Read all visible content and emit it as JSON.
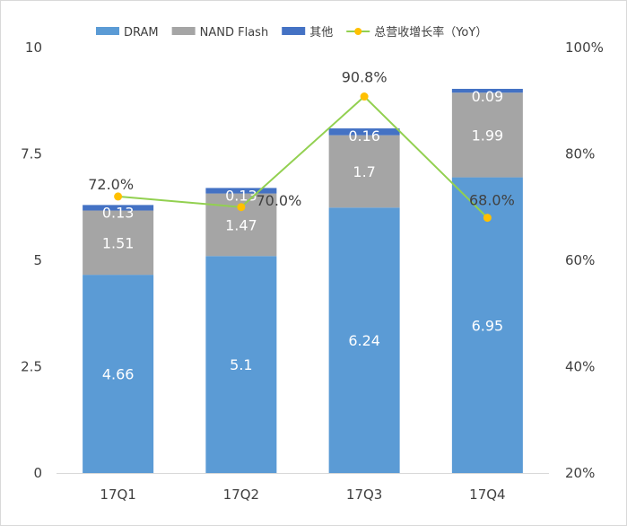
{
  "chart_data": {
    "type": "bar",
    "stacked": true,
    "categories": [
      "17Q1",
      "17Q2",
      "17Q3",
      "17Q4"
    ],
    "series": [
      {
        "name": "DRAM",
        "values": [
          4.66,
          5.1,
          6.24,
          6.95
        ],
        "color": "#5b9bd5"
      },
      {
        "name": "NAND Flash",
        "values": [
          1.51,
          1.47,
          1.7,
          1.99
        ],
        "color": "#a5a5a5"
      },
      {
        "name": "其他",
        "values": [
          0.13,
          0.13,
          0.16,
          0.09
        ],
        "color": "#4472c4"
      }
    ],
    "line_series": {
      "name": "总营收增长率（YoY）",
      "values": [
        72.0,
        70.0,
        90.8,
        68.0
      ],
      "labels": [
        "72.0%",
        "70.0%",
        "90.8%",
        "68.0%"
      ],
      "color": "#92d050",
      "marker_color": "#ffc000",
      "axis": "right"
    },
    "ylim": [
      0,
      10
    ],
    "y_ticks": [
      "0",
      "2.5",
      "5",
      "7.5",
      "10"
    ],
    "y2lim": [
      20,
      100
    ],
    "y2_ticks": [
      "20%",
      "40%",
      "60%",
      "80%",
      "100%"
    ],
    "grid": false,
    "legend_position": "top"
  }
}
